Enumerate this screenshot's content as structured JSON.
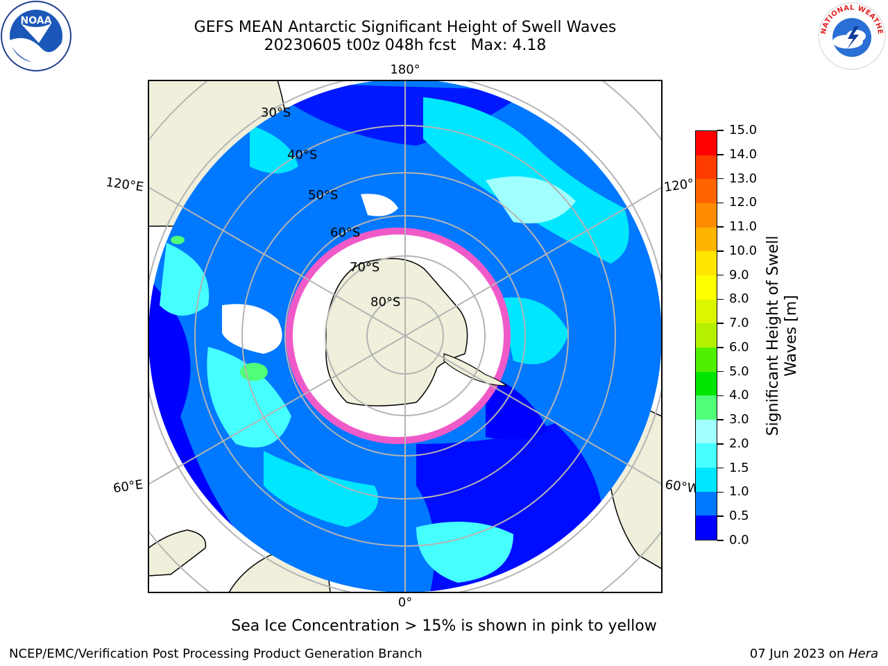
{
  "header": {
    "title_line_1": "GEFS MEAN Antarctic Significant Height of Swell Waves",
    "title_line_2": "20230605 t00z 048h fcst   Max: 4.18"
  },
  "logos": {
    "left": {
      "text": "NOAA",
      "icon": "noaa-logo"
    },
    "right": {
      "text": "NATIONAL WEATHER SERVICE",
      "icon": "nws-logo"
    }
  },
  "map": {
    "projection": "south-polar-stereographic",
    "longitude_labels": {
      "top": "180°",
      "bottom": "0°",
      "upper_left": "120°E",
      "upper_right": "120°",
      "lower_left": "60°E",
      "lower_right": "60°W"
    },
    "latitude_labels": [
      "30°S",
      "40°S",
      "50°S",
      "60°S",
      "70°S",
      "80°S"
    ],
    "colors": {
      "land": "#efefdc",
      "grid": "#b4b4b4",
      "ice_edge": "#f05ac8",
      "open_ocean": "#ffffff"
    }
  },
  "colorbar": {
    "title_line_1": "Significant Height of Swell",
    "title_line_2": "Waves [m]",
    "tick_labels": [
      "0.0",
      "0.5",
      "1.0",
      "1.5",
      "2.0",
      "3.0",
      "4.0",
      "5.0",
      "6.0",
      "7.0",
      "8.0",
      "9.0",
      "10.0",
      "11.0",
      "12.0",
      "13.0",
      "14.0",
      "15.0"
    ],
    "colors": [
      "#0000ff",
      "#0078ff",
      "#00e6ff",
      "#46ffff",
      "#a0ffff",
      "#50ff78",
      "#00e600",
      "#50f000",
      "#b4f000",
      "#dcf500",
      "#ffff00",
      "#ffe600",
      "#ffb400",
      "#ff8c00",
      "#ff6400",
      "#ff3c00",
      "#ff0000"
    ]
  },
  "footer": {
    "note": "Sea Ice Concentration > 15% is shown in pink to yellow",
    "left": "NCEP/EMC/Verification Post Processing Product Generation Branch",
    "right_date": "07 Jun 2023 on ",
    "right_host": "Hera"
  }
}
